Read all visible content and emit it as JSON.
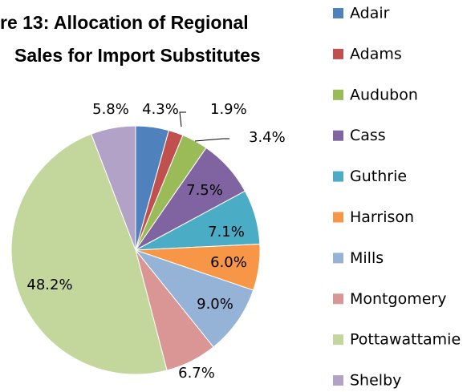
{
  "chart_data": {
    "type": "pie",
    "title": [
      "re 13: Allocation of Regional",
      "Sales for Import Substitutes"
    ],
    "categories": [
      "Adair",
      "Adams",
      "Audubon",
      "Cass",
      "Guthrie",
      "Harrison",
      "Mills",
      "Montgomery",
      "Pottawattamie",
      "Shelby"
    ],
    "values": [
      4.3,
      1.9,
      3.4,
      7.5,
      7.1,
      6.0,
      9.0,
      6.7,
      48.2,
      5.8
    ],
    "value_labels": [
      "4.3%",
      "1.9%",
      "3.4%",
      "7.5%",
      "7.1%",
      "6.0%",
      "9.0%",
      "6.7%",
      "48.2%",
      "5.8%"
    ],
    "colors": [
      "#4f81bd",
      "#c0504d",
      "#9bbb59",
      "#8064a2",
      "#4bacc6",
      "#f79646",
      "#95b3d7",
      "#d99694",
      "#c3d69b",
      "#b3a2c7"
    ],
    "legend": "right"
  }
}
